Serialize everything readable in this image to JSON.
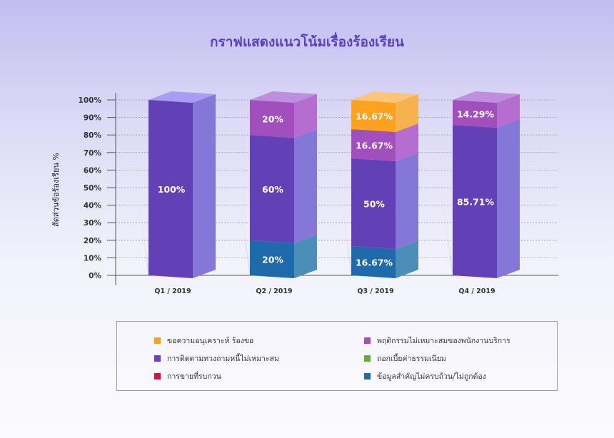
{
  "chart_data": {
    "type": "bar",
    "stacked": true,
    "title": "กราฟแสดงแนวโน้มเรื่องร้องเรียน",
    "ylabel": "สัดส่วนข้อร้องเรียน %",
    "xlabel": "",
    "ylim": [
      0,
      100
    ],
    "y_ticks": [
      "0%",
      "10%",
      "20%",
      "30%",
      "40%",
      "50%",
      "60%",
      "70%",
      "80%",
      "90%",
      "100%"
    ],
    "grid": true,
    "legend_position": "bottom",
    "categories": [
      "Q1 / 2019",
      "Q2 / 2019",
      "Q3 / 2019",
      "Q4 / 2019"
    ],
    "series": [
      {
        "name": "ข้อมูลสำคัญไม่ครบถ้วน/ไม่ถูกต้อง",
        "color": "#1f6aaa",
        "side_color": "#4b8fb8",
        "top_color": "#3f83c0",
        "values": [
          0,
          20,
          16.67,
          0
        ],
        "labels": [
          "",
          "20%",
          "16.67%",
          ""
        ]
      },
      {
        "name": "การติดตามทวงถามหนี้ไม่เหมาะสม",
        "color": "#6240b6",
        "side_color": "#8577d8",
        "top_color": "#a79cf6",
        "values": [
          100,
          60,
          50,
          85.71
        ],
        "labels": [
          "100%",
          "60%",
          "50%",
          "85.71%"
        ]
      },
      {
        "name": "พฤติกรรมไม่เหมาะสมของพนักงานบริการ",
        "color": "#a04fbd",
        "side_color": "#b56ed0",
        "top_color": "#c08ee0",
        "values": [
          0,
          20,
          16.67,
          14.29
        ],
        "labels": [
          "",
          "20%",
          "16.67%",
          "14.29%"
        ]
      },
      {
        "name": "ขอความอนุเคราะห์ ร้องขอ",
        "color": "#fca21f",
        "side_color": "#f6b24c",
        "top_color": "#fcc57a",
        "values": [
          0,
          0,
          16.67,
          0
        ],
        "labels": [
          "",
          "",
          "16.67%",
          ""
        ]
      }
    ]
  },
  "legend": [
    {
      "label": "ขอความอนุเคราะห์ ร้องขอ",
      "color": "#f7a21b"
    },
    {
      "label": "พฤติกรรมไม่เหมาะสมของพนักงานบริการ",
      "color": "#a64ec0"
    },
    {
      "label": "การติดตามทวงถามหนี้ไม่เหมาะสม",
      "color": "#6a44bb"
    },
    {
      "label": "ถอกเบี้ยค่าธรรมเนียม",
      "color": "#6aa844"
    },
    {
      "label": "การขายที่รบกวน",
      "color": "#d4143c"
    },
    {
      "label": "ข้อมูลสำคัญไม่ครบถ้วน/ไม่ถูกต้อง",
      "color": "#1f6aaa"
    }
  ]
}
